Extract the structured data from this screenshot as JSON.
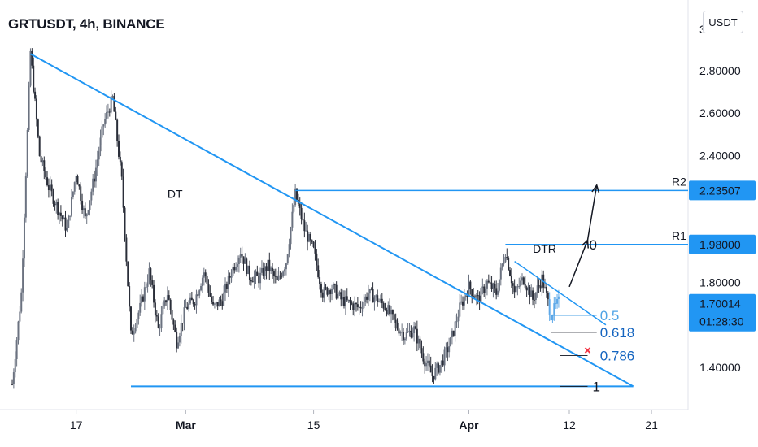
{
  "header": {
    "title": "GRTUSDT, 4h, BINANCE",
    "currency_button": "USDT"
  },
  "colors": {
    "line": "#2196f3",
    "candle": "#2a2e39",
    "candle_up": "#5da8e8",
    "badge": "#2196f3",
    "fib_dark": "#1565c0",
    "x_mark": "#f23645"
  },
  "chart_data": {
    "type": "candlestick",
    "symbol": "GRTUSDT",
    "interval": "4h",
    "exchange": "BINANCE",
    "ylim": [
      1.2,
      3.05
    ],
    "y_ticks": [
      {
        "value": 1.4,
        "label": "1.40000"
      },
      {
        "value": 1.8,
        "label": "1.80000"
      },
      {
        "value": 2.4,
        "label": "2.40000"
      },
      {
        "value": 2.6,
        "label": "2.60000"
      },
      {
        "value": 2.8,
        "label": "2.80000"
      }
    ],
    "partial_tick_top": "3",
    "xlim": [
      "2021-02-10",
      "2021-04-25"
    ],
    "x_ticks": [
      {
        "date": "2021-02-17",
        "label": "17"
      },
      {
        "date": "2021-03-01",
        "label": "Mar"
      },
      {
        "date": "2021-03-15",
        "label": "15"
      },
      {
        "date": "2021-04-01",
        "label": "Apr"
      },
      {
        "date": "2021-04-12",
        "label": "12"
      },
      {
        "date": "2021-04-21",
        "label": "21"
      }
    ],
    "price_path": [
      [
        "2021-02-10",
        1.32
      ],
      [
        "2021-02-11",
        1.75
      ],
      [
        "2021-02-12",
        2.89
      ],
      [
        "2021-02-13",
        2.4
      ],
      [
        "2021-02-14",
        2.25
      ],
      [
        "2021-02-15",
        2.15
      ],
      [
        "2021-02-16",
        2.05
      ],
      [
        "2021-02-17",
        2.32
      ],
      [
        "2021-02-18",
        2.1
      ],
      [
        "2021-02-19",
        2.3
      ],
      [
        "2021-02-20",
        2.55
      ],
      [
        "2021-02-21",
        2.67
      ],
      [
        "2021-02-22",
        2.28
      ],
      [
        "2021-02-23",
        1.55
      ],
      [
        "2021-02-24",
        1.68
      ],
      [
        "2021-02-25",
        1.85
      ],
      [
        "2021-02-26",
        1.58
      ],
      [
        "2021-02-27",
        1.75
      ],
      [
        "2021-02-28",
        1.52
      ],
      [
        "2021-03-01",
        1.68
      ],
      [
        "2021-03-02",
        1.72
      ],
      [
        "2021-03-03",
        1.85
      ],
      [
        "2021-03-04",
        1.68
      ],
      [
        "2021-03-05",
        1.72
      ],
      [
        "2021-03-06",
        1.85
      ],
      [
        "2021-03-07",
        1.95
      ],
      [
        "2021-03-08",
        1.83
      ],
      [
        "2021-03-09",
        1.82
      ],
      [
        "2021-03-10",
        1.88
      ],
      [
        "2021-03-11",
        1.8
      ],
      [
        "2021-03-12",
        1.9
      ],
      [
        "2021-03-13",
        2.22
      ],
      [
        "2021-03-14",
        2.05
      ],
      [
        "2021-03-15",
        1.95
      ],
      [
        "2021-03-16",
        1.75
      ],
      [
        "2021-03-17",
        1.78
      ],
      [
        "2021-03-18",
        1.72
      ],
      [
        "2021-03-19",
        1.7
      ],
      [
        "2021-03-20",
        1.68
      ],
      [
        "2021-03-21",
        1.75
      ],
      [
        "2021-03-22",
        1.72
      ],
      [
        "2021-03-23",
        1.68
      ],
      [
        "2021-03-24",
        1.6
      ],
      [
        "2021-03-25",
        1.55
      ],
      [
        "2021-03-26",
        1.58
      ],
      [
        "2021-03-27",
        1.45
      ],
      [
        "2021-03-28",
        1.36
      ],
      [
        "2021-03-29",
        1.42
      ],
      [
        "2021-03-30",
        1.52
      ],
      [
        "2021-03-31",
        1.68
      ],
      [
        "2021-04-01",
        1.78
      ],
      [
        "2021-04-02",
        1.72
      ],
      [
        "2021-04-03",
        1.8
      ],
      [
        "2021-04-04",
        1.75
      ],
      [
        "2021-04-05",
        1.95
      ],
      [
        "2021-04-06",
        1.75
      ],
      [
        "2021-04-07",
        1.82
      ],
      [
        "2021-04-08",
        1.72
      ],
      [
        "2021-04-09",
        1.82
      ],
      [
        "2021-04-10",
        1.65
      ],
      [
        "2021-04-11",
        1.72
      ]
    ],
    "current_price": {
      "value": 1.70014,
      "label": "1.70014",
      "countdown": "01:28:30"
    },
    "resistance_levels": [
      {
        "name": "R2",
        "value": 2.23507,
        "label": "2.23507"
      },
      {
        "name": "R1",
        "value": 1.98,
        "label": "1.98000"
      }
    ],
    "support_level": {
      "value": 1.31
    },
    "trendlines": [
      {
        "from": [
          "2021-02-12",
          2.88
        ],
        "to": [
          "2021-04-19",
          1.31
        ]
      },
      {
        "from": [
          "2021-04-06",
          1.9
        ],
        "to": [
          "2021-04-16",
          1.6
        ]
      }
    ],
    "annotations": [
      {
        "text": "DT",
        "date": "2021-02-27",
        "value": 2.2
      },
      {
        "text": "DTR",
        "date": "2021-04-08",
        "value": 1.94
      }
    ],
    "fib_levels": [
      {
        "label": "0",
        "value": 1.98
      },
      {
        "label": "0.5",
        "value": 1.645
      },
      {
        "label": "0.618",
        "value": 1.565
      },
      {
        "label": "0.786",
        "value": 1.455
      },
      {
        "label": "1",
        "value": 1.31
      }
    ],
    "projection_arrows": [
      {
        "from": [
          "2021-04-12",
          1.78
        ],
        "to": [
          "2021-04-14",
          2.0
        ]
      },
      {
        "from": [
          "2021-04-14",
          2.0
        ],
        "to": [
          "2021-04-15",
          2.26
        ]
      }
    ],
    "x_mark": {
      "date": "2021-04-14",
      "value": 1.48
    }
  }
}
